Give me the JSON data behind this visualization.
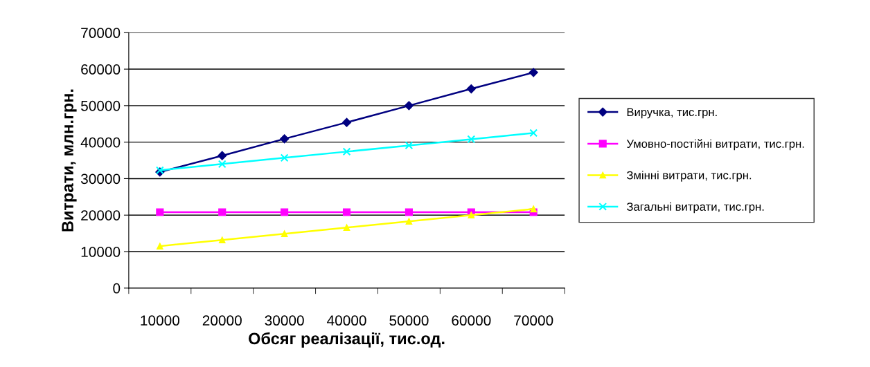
{
  "chart_data": {
    "type": "line",
    "xlabel": "Обсяг реалізації, тис.од.",
    "ylabel": "Витрати, млн.грн.",
    "categories": [
      "10000",
      "20000",
      "30000",
      "40000",
      "50000",
      "60000",
      "70000"
    ],
    "series": [
      {
        "name": "Виручка, тис.грн.",
        "color": "#000080",
        "marker": "diamond",
        "values": [
          31800,
          36300,
          40900,
          45400,
          50000,
          54600,
          59100
        ]
      },
      {
        "name": "Умовно-постійні витрати, тис.грн.",
        "color": "#ff00ff",
        "marker": "square",
        "values": [
          20800,
          20800,
          20800,
          20800,
          20800,
          20800,
          20800
        ]
      },
      {
        "name": "Змінні витрати, тис.грн.",
        "color": "#ffff00",
        "marker": "triangle",
        "values": [
          11500,
          13200,
          14900,
          16600,
          18300,
          20000,
          21700
        ]
      },
      {
        "name": "Загальні витрати, тис.грн.",
        "color": "#00ffff",
        "marker": "cross",
        "values": [
          32300,
          34000,
          35700,
          37400,
          39100,
          40800,
          42500
        ]
      }
    ],
    "ylim": [
      0,
      70000
    ],
    "yticks": [
      0,
      10000,
      20000,
      30000,
      40000,
      50000,
      60000,
      70000
    ],
    "grid": "y",
    "legend": "right",
    "line_style": "solid"
  }
}
